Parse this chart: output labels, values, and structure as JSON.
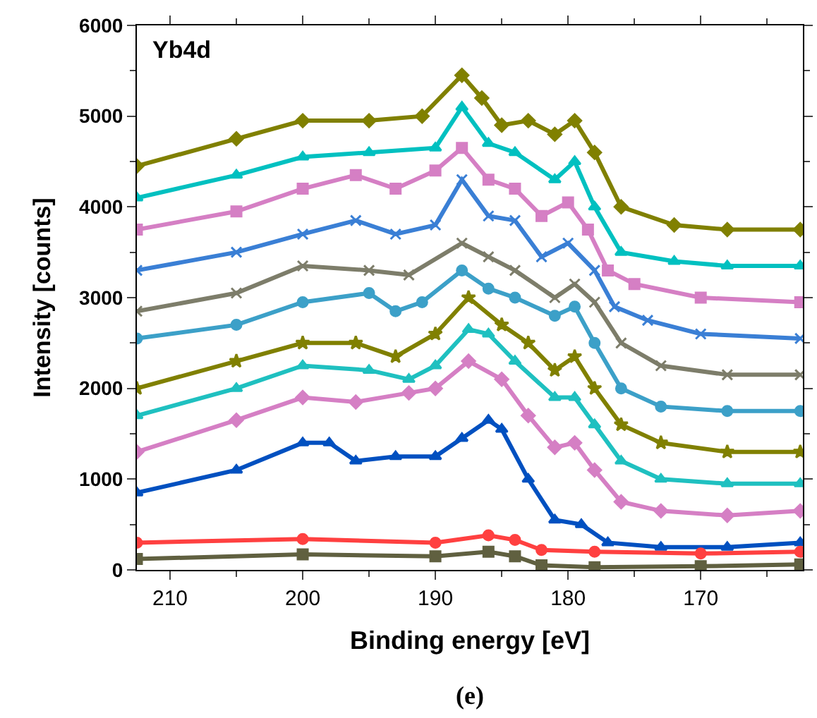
{
  "chart_data": {
    "type": "line",
    "xlabel": "Binding energy [eV]",
    "ylabel": "Intensity [counts]",
    "annotations": [
      "Yb4d",
      "(e)"
    ],
    "xlim": [
      212.5,
      162.3
    ],
    "xticks": [
      210,
      200,
      190,
      180,
      170
    ],
    "ylim": [
      0,
      6000
    ],
    "yticks": [
      0,
      1000,
      2000,
      3000,
      4000,
      5000,
      6000
    ],
    "series": [
      {
        "color": "#808000",
        "marker": "diamond",
        "x": [
          212.5,
          205,
          200,
          195,
          191,
          188,
          186.5,
          185,
          183,
          181,
          179.5,
          178,
          176,
          172,
          168,
          162.5
        ],
        "values": [
          4450,
          4750,
          4950,
          4950,
          5000,
          5450,
          5200,
          4900,
          4950,
          4800,
          4950,
          4600,
          4000,
          3800,
          3750,
          3750
        ]
      },
      {
        "color": "#00c0c0",
        "marker": "triangle",
        "x": [
          212.5,
          205,
          200,
          195,
          190,
          188,
          186,
          184,
          181,
          179.5,
          178,
          176,
          172,
          168,
          162.5
        ],
        "values": [
          4100,
          4350,
          4550,
          4600,
          4650,
          5100,
          4700,
          4600,
          4300,
          4500,
          4000,
          3500,
          3400,
          3350,
          3350
        ]
      },
      {
        "color": "#d57fc4",
        "marker": "square",
        "x": [
          212.5,
          205,
          200,
          196,
          193,
          190,
          188,
          186,
          184,
          182,
          180,
          178.5,
          177,
          175,
          170,
          162.5
        ],
        "values": [
          3750,
          3950,
          4200,
          4350,
          4200,
          4400,
          4650,
          4300,
          4200,
          3900,
          4050,
          3750,
          3300,
          3150,
          3000,
          2950
        ]
      },
      {
        "color": "#3a7fd5",
        "marker": "cross",
        "x": [
          212.5,
          205,
          200,
          196,
          193,
          190,
          188,
          186,
          184,
          182,
          180,
          178,
          176.5,
          174,
          170,
          162.5
        ],
        "values": [
          3300,
          3500,
          3700,
          3850,
          3700,
          3800,
          4300,
          3900,
          3850,
          3450,
          3600,
          3300,
          2900,
          2750,
          2600,
          2550
        ]
      },
      {
        "color": "#7d7d6a",
        "marker": "cross",
        "x": [
          212.5,
          205,
          200,
          195,
          192,
          188,
          186,
          184,
          181,
          179.5,
          178,
          176,
          173,
          168,
          162.5
        ],
        "values": [
          2850,
          3050,
          3350,
          3300,
          3250,
          3600,
          3450,
          3300,
          3000,
          3150,
          2950,
          2500,
          2250,
          2150,
          2150
        ]
      },
      {
        "color": "#3ca0c8",
        "marker": "circle",
        "x": [
          212.5,
          205,
          200,
          195,
          193,
          191,
          188,
          186,
          184,
          181,
          179.5,
          178,
          176,
          173,
          168,
          162.5
        ],
        "values": [
          2550,
          2700,
          2950,
          3050,
          2850,
          2950,
          3300,
          3100,
          3000,
          2800,
          2900,
          2500,
          2000,
          1800,
          1750,
          1750
        ]
      },
      {
        "color": "#808000",
        "marker": "star",
        "x": [
          212.5,
          205,
          200,
          196,
          193,
          190,
          187.5,
          185,
          183,
          181,
          179.5,
          178,
          176,
          173,
          168,
          162.5
        ],
        "values": [
          2000,
          2300,
          2500,
          2500,
          2350,
          2600,
          3000,
          2700,
          2500,
          2200,
          2350,
          2000,
          1600,
          1400,
          1300,
          1300
        ]
      },
      {
        "color": "#1fc0c0",
        "marker": "triangle",
        "x": [
          212.5,
          205,
          200,
          195,
          192,
          190,
          187.5,
          186,
          184,
          181,
          179.5,
          178,
          176,
          173,
          168,
          162.5
        ],
        "values": [
          1700,
          2000,
          2250,
          2200,
          2100,
          2250,
          2650,
          2600,
          2300,
          1900,
          1900,
          1600,
          1200,
          1000,
          950,
          950
        ]
      },
      {
        "color": "#d57fc4",
        "marker": "diamond",
        "x": [
          212.5,
          205,
          200,
          196,
          192,
          190,
          187.5,
          185,
          183,
          181,
          179.5,
          178,
          176,
          173,
          168,
          162.5
        ],
        "values": [
          1300,
          1650,
          1900,
          1850,
          1950,
          2000,
          2300,
          2100,
          1700,
          1350,
          1400,
          1100,
          750,
          650,
          600,
          650
        ]
      },
      {
        "color": "#0050c0",
        "marker": "triangle",
        "x": [
          212.5,
          205,
          200,
          198,
          196,
          193,
          190,
          188,
          186,
          185,
          183,
          181,
          179,
          177,
          173,
          168,
          162.5
        ],
        "values": [
          850,
          1100,
          1400,
          1400,
          1200,
          1250,
          1250,
          1450,
          1650,
          1550,
          1000,
          550,
          500,
          300,
          250,
          250,
          300
        ]
      },
      {
        "color": "#ff4040",
        "marker": "circle",
        "x": [
          212.5,
          200,
          190,
          186,
          184,
          182,
          178,
          170,
          162.5
        ],
        "values": [
          300,
          340,
          300,
          380,
          330,
          220,
          200,
          180,
          200
        ]
      },
      {
        "color": "#606040",
        "marker": "square",
        "x": [
          212.5,
          200,
          190,
          186,
          184,
          182,
          178,
          170,
          162.5
        ],
        "values": [
          120,
          170,
          150,
          200,
          150,
          50,
          30,
          40,
          60
        ]
      }
    ]
  }
}
